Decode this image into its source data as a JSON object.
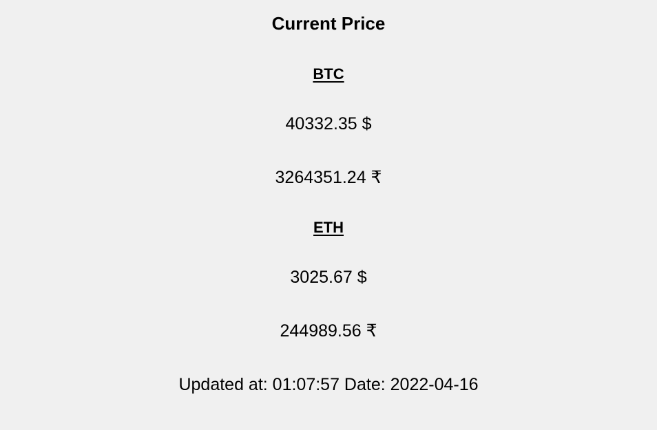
{
  "title": "Current Price",
  "coins": [
    {
      "symbol": "BTC",
      "usd": "40332.35 $",
      "inr": "3264351.24 ₹"
    },
    {
      "symbol": "ETH",
      "usd": "3025.67 $",
      "inr": "244989.56 ₹"
    }
  ],
  "updated": {
    "text": "Updated at: 01:07:57 Date: 2022-04-16"
  },
  "colors": {
    "background": "#f0f0f0",
    "text": "#000000"
  }
}
